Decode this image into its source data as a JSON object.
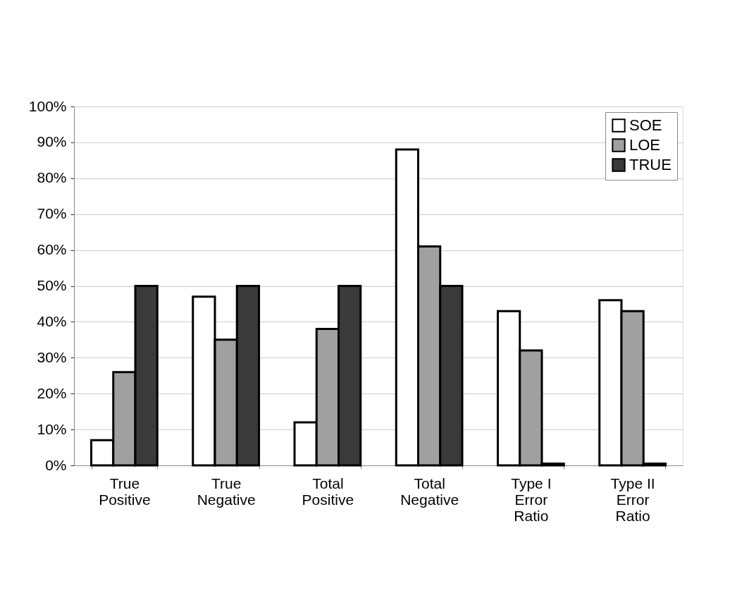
{
  "chart_data": {
    "type": "bar",
    "categories": [
      "True\nPositive",
      "True\nNegative",
      "Total\nPositive",
      "Total\nNegative",
      "Type I\nError\nRatio",
      "Type II\nError\nRatio"
    ],
    "series": [
      {
        "name": "SOE",
        "color": "#ffffff",
        "values": [
          7,
          47,
          12,
          88,
          43,
          46
        ]
      },
      {
        "name": "LOE",
        "color": "#a0a0a0",
        "values": [
          26,
          35,
          38,
          61,
          32,
          43
        ]
      },
      {
        "name": "TRUE",
        "color": "#3a3a3a",
        "values": [
          50,
          50,
          50,
          50,
          0.5,
          0.5
        ]
      }
    ],
    "ylim": [
      0,
      100
    ],
    "yticks": [
      {
        "value": 0,
        "label": "0%"
      },
      {
        "value": 10,
        "label": "10%"
      },
      {
        "value": 20,
        "label": "20%"
      },
      {
        "value": 30,
        "label": "30%"
      },
      {
        "value": 40,
        "label": "40%"
      },
      {
        "value": 50,
        "label": "50%"
      },
      {
        "value": 60,
        "label": "60%"
      },
      {
        "value": 70,
        "label": "70%"
      },
      {
        "value": 80,
        "label": "80%"
      },
      {
        "value": 90,
        "label": "90%"
      },
      {
        "value": 100,
        "label": "100%"
      }
    ],
    "grid": "y",
    "legend": "top right"
  }
}
